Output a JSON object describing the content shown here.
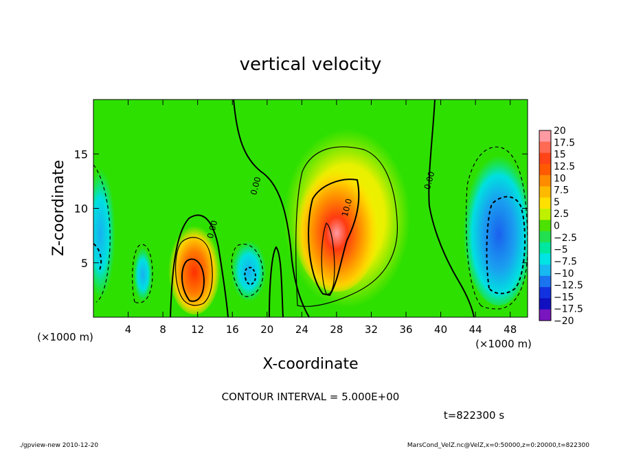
{
  "chart_data": {
    "type": "heatmap",
    "title": "vertical velocity",
    "xlabel": "X-coordinate",
    "ylabel": "Z-coordinate",
    "x_unit_left": "(×1000 m)",
    "x_unit_right": "(×1000 m)",
    "xlim": [
      0,
      50
    ],
    "ylim": [
      0,
      20
    ],
    "x_ticks": [
      {
        "value": 4,
        "label": "4"
      },
      {
        "value": 8,
        "label": "8"
      },
      {
        "value": 12,
        "label": "12"
      },
      {
        "value": 16,
        "label": "16"
      },
      {
        "value": 20,
        "label": "20"
      },
      {
        "value": 24,
        "label": "24"
      },
      {
        "value": 28,
        "label": "28"
      },
      {
        "value": 32,
        "label": "32"
      },
      {
        "value": 36,
        "label": "36"
      },
      {
        "value": 40,
        "label": "40"
      },
      {
        "value": 44,
        "label": "44"
      },
      {
        "value": 48,
        "label": "48"
      }
    ],
    "y_ticks": [
      {
        "value": 5,
        "label": "5"
      },
      {
        "value": 10,
        "label": "10"
      },
      {
        "value": 15,
        "label": "15"
      }
    ],
    "colorbar": {
      "labels": [
        "20",
        "17.5",
        "15",
        "12.5",
        "10",
        "7.5",
        "5",
        "2.5",
        "0",
        "−2.5",
        "−5",
        "−7.5",
        "−10",
        "−12.5",
        "−15",
        "−17.5",
        "−20"
      ],
      "colors": [
        "#ff9aa2",
        "#ff6a55",
        "#ff4418",
        "#ff5a00",
        "#ff8c00",
        "#ffba00",
        "#ffe000",
        "#bff000",
        "#4ce100",
        "#22e050",
        "#00e8a0",
        "#00e4e4",
        "#18b8f0",
        "#1a74ef",
        "#1232e0",
        "#1010c0",
        "#7a16c0"
      ]
    },
    "contour_labels": [
      {
        "text": "0.00",
        "x": 14,
        "z": 8
      },
      {
        "text": "0.00",
        "x": 19,
        "z": 12
      },
      {
        "text": "10.0",
        "x": 29.5,
        "z": 10
      },
      {
        "text": "0.00",
        "x": 39,
        "z": 12.5
      }
    ],
    "contour_interval_label": "CONTOUR INTERVAL = 5.000E+00",
    "time_label": "t=822300 s"
  },
  "footer": {
    "left": "./gpview-new  2010-12-20",
    "right": "MarsCond_VelZ.nc@VelZ,x=0:50000,z=0:20000,t=822300"
  }
}
